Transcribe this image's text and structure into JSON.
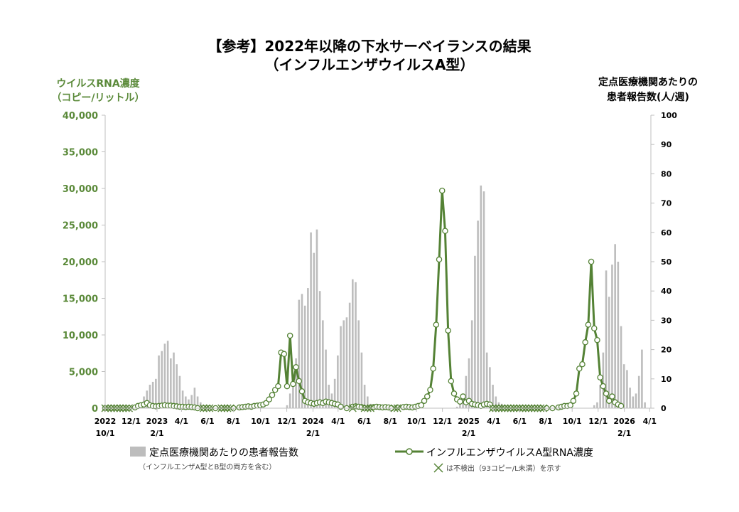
{
  "chart_data": {
    "type": "bar+line",
    "title_line1": "【参考】2022年以降の下水サーベイランスの結果",
    "title_line2": "（インフルエンザウイルスA型）",
    "ylabel_left_line1": "ウイルスRNA濃度",
    "ylabel_left_line2": "（コピー/リットル）",
    "ylabel_right_line1": "定点医療機関あたりの",
    "ylabel_right_line2": "患者報告数(人/週)",
    "ylim_left": [
      0,
      40000
    ],
    "ylim_right": [
      0,
      100
    ],
    "yticks_left": [
      "0",
      "5,000",
      "10,000",
      "15,000",
      "20,000",
      "25,000",
      "30,000",
      "35,000",
      "40,000"
    ],
    "yticks_right": [
      "0",
      "10",
      "20",
      "30",
      "40",
      "50",
      "60",
      "70",
      "80",
      "90",
      "100"
    ],
    "xlim_weeks": [
      0,
      183
    ],
    "xticks": [
      {
        "week": 0,
        "label": "2022",
        "sub": "10/1"
      },
      {
        "week": 8.7,
        "label": "12/1"
      },
      {
        "week": 17.4,
        "label": "2023",
        "sub": "2/1"
      },
      {
        "week": 25.6,
        "label": "4/1"
      },
      {
        "week": 34.3,
        "label": "6/1"
      },
      {
        "week": 43,
        "label": "8/1"
      },
      {
        "week": 52.1,
        "label": "10/1"
      },
      {
        "week": 60.9,
        "label": "12/1"
      },
      {
        "week": 69.7,
        "label": "2024",
        "sub": "2/1"
      },
      {
        "week": 78.1,
        "label": "4/1"
      },
      {
        "week": 86.9,
        "label": "6/1"
      },
      {
        "week": 95.6,
        "label": "8/1"
      },
      {
        "week": 104.4,
        "label": "10/1"
      },
      {
        "week": 113.1,
        "label": "12/1"
      },
      {
        "week": 121.9,
        "label": "2025",
        "sub": "2/1"
      },
      {
        "week": 130.3,
        "label": "4/1"
      },
      {
        "week": 139,
        "label": "6/1"
      },
      {
        "week": 147.7,
        "label": "8/1"
      },
      {
        "week": 156.6,
        "label": "10/1"
      },
      {
        "week": 165.3,
        "label": "12/1"
      },
      {
        "week": 174.1,
        "label": "2026",
        "sub": "2/1"
      },
      {
        "week": 182.6,
        "label": "4/1"
      }
    ],
    "series": [
      {
        "name": "定点医療機関あたりの患者報告数",
        "note": "（インフルエンザA型とB型の両方を含む）",
        "axis": "right",
        "kind": "bar",
        "color": "#bdbdbd",
        "points": [
          [
            10,
            0.3
          ],
          [
            11,
            1
          ],
          [
            12,
            2
          ],
          [
            13,
            4
          ],
          [
            14,
            6
          ],
          [
            15,
            8
          ],
          [
            16,
            9
          ],
          [
            17,
            10
          ],
          [
            18,
            18
          ],
          [
            19,
            19.5
          ],
          [
            20,
            22
          ],
          [
            21,
            23
          ],
          [
            22,
            17
          ],
          [
            23,
            19
          ],
          [
            24,
            15
          ],
          [
            25,
            11
          ],
          [
            26,
            6
          ],
          [
            27,
            4
          ],
          [
            28,
            3
          ],
          [
            29,
            4.5
          ],
          [
            30,
            7
          ],
          [
            31,
            4
          ],
          [
            32,
            2
          ],
          [
            33,
            1
          ],
          [
            34,
            0.5
          ],
          [
            61,
            1
          ],
          [
            62,
            5
          ],
          [
            63,
            8
          ],
          [
            64,
            17
          ],
          [
            65,
            37
          ],
          [
            66,
            39
          ],
          [
            67,
            35
          ],
          [
            68,
            41
          ],
          [
            69,
            60
          ],
          [
            70,
            53
          ],
          [
            71,
            61
          ],
          [
            72,
            40
          ],
          [
            73,
            30
          ],
          [
            74,
            20
          ],
          [
            75,
            8
          ],
          [
            76,
            5
          ],
          [
            77,
            10
          ],
          [
            78,
            18
          ],
          [
            79,
            28
          ],
          [
            80,
            30
          ],
          [
            81,
            31
          ],
          [
            82,
            36
          ],
          [
            83,
            44
          ],
          [
            84,
            43
          ],
          [
            85,
            30
          ],
          [
            86,
            19
          ],
          [
            87,
            8
          ],
          [
            88,
            4
          ],
          [
            89,
            1.5
          ],
          [
            118,
            0.5
          ],
          [
            119,
            2
          ],
          [
            120,
            4
          ],
          [
            121,
            11
          ],
          [
            122,
            17
          ],
          [
            123,
            30
          ],
          [
            124,
            52
          ],
          [
            125,
            64
          ],
          [
            126,
            76
          ],
          [
            127,
            74
          ],
          [
            128,
            19
          ],
          [
            129,
            14
          ],
          [
            130,
            8
          ],
          [
            131,
            4
          ],
          [
            132,
            2
          ],
          [
            133,
            1.5
          ],
          [
            134,
            1
          ],
          [
            135,
            0.5
          ],
          [
            164,
            1
          ],
          [
            165,
            2
          ],
          [
            166,
            8
          ],
          [
            167,
            19
          ],
          [
            168,
            47
          ],
          [
            169,
            38
          ],
          [
            170,
            49
          ],
          [
            171,
            56
          ],
          [
            172,
            50
          ],
          [
            173,
            28
          ],
          [
            174,
            15
          ],
          [
            175,
            13
          ],
          [
            176,
            7
          ],
          [
            177,
            4
          ],
          [
            178,
            5
          ],
          [
            179,
            11
          ],
          [
            180,
            20
          ],
          [
            181,
            2
          ]
        ]
      },
      {
        "name": "インフルエンザウイルスA型RNA濃度",
        "note": "は不検出（93コピー/L未満）を示す",
        "axis": "left",
        "kind": "line",
        "color": "#548235",
        "points": [
          [
            0,
            0
          ],
          [
            2,
            0
          ],
          [
            4,
            0
          ],
          [
            6,
            0
          ],
          [
            8,
            0
          ],
          [
            10,
            100
          ],
          [
            11,
            300
          ],
          [
            12,
            400
          ],
          [
            13,
            500
          ],
          [
            14,
            700
          ],
          [
            15,
            400
          ],
          [
            16,
            300
          ],
          [
            17,
            250
          ],
          [
            18,
            300
          ],
          [
            19,
            350
          ],
          [
            20,
            400
          ],
          [
            21,
            350
          ],
          [
            22,
            350
          ],
          [
            23,
            300
          ],
          [
            24,
            250
          ],
          [
            25,
            200
          ],
          [
            26,
            200
          ],
          [
            27,
            150
          ],
          [
            28,
            200
          ],
          [
            29,
            150
          ],
          [
            30,
            100
          ],
          [
            31,
            0
          ],
          [
            33,
            0
          ],
          [
            35,
            0
          ],
          [
            37,
            0
          ],
          [
            39,
            0
          ],
          [
            41,
            0
          ],
          [
            43,
            0
          ],
          [
            45,
            100
          ],
          [
            46,
            150
          ],
          [
            47,
            200
          ],
          [
            48,
            250
          ],
          [
            49,
            200
          ],
          [
            50,
            300
          ],
          [
            51,
            350
          ],
          [
            52,
            400
          ],
          [
            53,
            500
          ],
          [
            54,
            700
          ],
          [
            55,
            1200
          ],
          [
            56,
            1800
          ],
          [
            57,
            2500
          ],
          [
            58,
            3000
          ],
          [
            59,
            7600
          ],
          [
            60,
            7400
          ],
          [
            61,
            3000
          ],
          [
            62,
            9900
          ],
          [
            63,
            3300
          ],
          [
            64,
            5600
          ],
          [
            65,
            3700
          ],
          [
            66,
            2300
          ],
          [
            67,
            1000
          ],
          [
            68,
            800
          ],
          [
            69,
            700
          ],
          [
            70,
            600
          ],
          [
            71,
            700
          ],
          [
            72,
            800
          ],
          [
            73,
            700
          ],
          [
            74,
            900
          ],
          [
            75,
            800
          ],
          [
            76,
            700
          ],
          [
            77,
            600
          ],
          [
            78,
            500
          ],
          [
            79,
            200
          ],
          [
            81,
            0
          ],
          [
            83,
            200
          ],
          [
            84,
            250
          ],
          [
            85,
            200
          ],
          [
            86,
            150
          ],
          [
            87,
            0
          ],
          [
            89,
            100
          ],
          [
            90,
            150
          ],
          [
            91,
            200
          ],
          [
            92,
            150
          ],
          [
            93,
            100
          ],
          [
            94,
            150
          ],
          [
            95,
            100
          ],
          [
            96,
            0
          ],
          [
            98,
            100
          ],
          [
            100,
            150
          ],
          [
            101,
            200
          ],
          [
            102,
            150
          ],
          [
            103,
            100
          ],
          [
            104,
            200
          ],
          [
            105,
            300
          ],
          [
            106,
            400
          ],
          [
            107,
            1000
          ],
          [
            108,
            1600
          ],
          [
            109,
            2500
          ],
          [
            110,
            5400
          ],
          [
            111,
            11400
          ],
          [
            112,
            20300
          ],
          [
            113,
            29700
          ],
          [
            114,
            24200
          ],
          [
            115,
            10600
          ],
          [
            116,
            3700
          ],
          [
            117,
            2000
          ],
          [
            118,
            1200
          ],
          [
            119,
            900
          ],
          [
            120,
            1600
          ],
          [
            121,
            800
          ],
          [
            122,
            1000
          ],
          [
            123,
            600
          ],
          [
            124,
            500
          ],
          [
            125,
            400
          ],
          [
            126,
            300
          ],
          [
            127,
            500
          ],
          [
            128,
            600
          ],
          [
            129,
            500
          ],
          [
            130,
            0
          ],
          [
            132,
            0
          ],
          [
            134,
            0
          ],
          [
            136,
            0
          ],
          [
            138,
            0
          ],
          [
            140,
            0
          ],
          [
            142,
            0
          ],
          [
            144,
            0
          ],
          [
            146,
            0
          ],
          [
            148,
            0
          ],
          [
            150,
            0
          ],
          [
            152,
            100
          ],
          [
            153,
            200
          ],
          [
            154,
            300
          ],
          [
            155,
            300
          ],
          [
            156,
            400
          ],
          [
            157,
            1000
          ],
          [
            158,
            2000
          ],
          [
            159,
            5400
          ],
          [
            160,
            6000
          ],
          [
            161,
            9000
          ],
          [
            162,
            11400
          ],
          [
            163,
            20000
          ],
          [
            164,
            10900
          ],
          [
            165,
            9300
          ],
          [
            166,
            4200
          ],
          [
            167,
            3000
          ],
          [
            168,
            2000
          ],
          [
            169,
            1000
          ],
          [
            170,
            1600
          ],
          [
            171,
            800
          ],
          [
            172,
            500
          ],
          [
            173,
            300
          ]
        ]
      }
    ],
    "not_detected_weeks": [
      0,
      1,
      2,
      3,
      4,
      5,
      6,
      7,
      8,
      33,
      34,
      35,
      39,
      40,
      41,
      42,
      83,
      87,
      88,
      89,
      97,
      98,
      130,
      131,
      132,
      133,
      134,
      135,
      136,
      137,
      138,
      139,
      140,
      141,
      142,
      143,
      144,
      145,
      146,
      147
    ],
    "legend_position": "bottom"
  }
}
